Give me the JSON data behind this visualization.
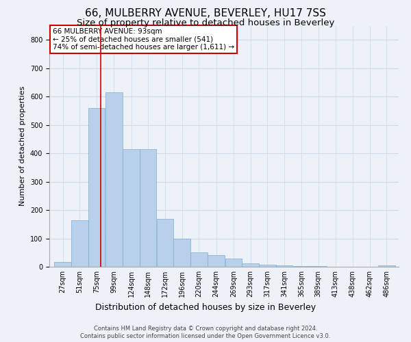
{
  "title1": "66, MULBERRY AVENUE, BEVERLEY, HU17 7SS",
  "title2": "Size of property relative to detached houses in Beverley",
  "xlabel": "Distribution of detached houses by size in Beverley",
  "ylabel": "Number of detached properties",
  "footer1": "Contains HM Land Registry data © Crown copyright and database right 2024.",
  "footer2": "Contains public sector information licensed under the Open Government Licence v3.0.",
  "annotation_line1": "66 MULBERRY AVENUE: 93sqm",
  "annotation_line2": "← 25% of detached houses are smaller (541)",
  "annotation_line3": "74% of semi-detached houses are larger (1,611) →",
  "bar_left_edges": [
    27,
    51,
    75,
    99,
    124,
    148,
    172,
    196,
    220,
    244,
    269,
    293,
    317,
    341,
    365,
    389,
    413,
    438,
    462,
    486
  ],
  "bar_widths": [
    24,
    24,
    24,
    25,
    24,
    24,
    24,
    24,
    24,
    25,
    24,
    24,
    24,
    24,
    24,
    24,
    25,
    24,
    24,
    24
  ],
  "bar_heights": [
    18,
    165,
    560,
    615,
    415,
    415,
    170,
    100,
    50,
    40,
    30,
    13,
    8,
    5,
    3,
    2,
    1,
    0,
    0,
    6
  ],
  "bar_color": "#b8d0ea",
  "bar_edge_color": "#7aadd4",
  "redline_x": 93,
  "ylim": [
    0,
    850
  ],
  "yticks": [
    0,
    100,
    200,
    300,
    400,
    500,
    600,
    700,
    800
  ],
  "grid_color": "#cdd8e8",
  "bg_color": "#edf2f8",
  "annotation_box_color": "#ffffff",
  "annotation_border_color": "#cc0000",
  "redline_color": "#cc0000",
  "title1_fontsize": 11,
  "title2_fontsize": 9.5,
  "xlabel_fontsize": 9,
  "ylabel_fontsize": 8,
  "tick_label_fontsize": 7,
  "annotation_fontsize": 7.5
}
